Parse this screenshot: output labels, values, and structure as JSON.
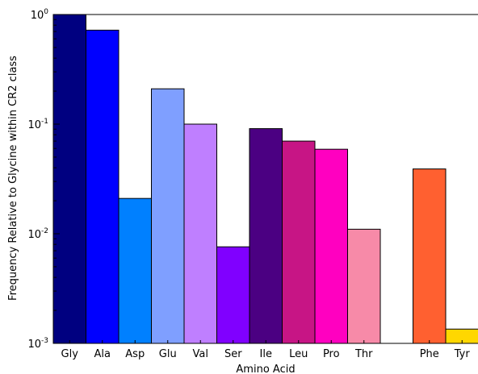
{
  "chart_data": {
    "type": "bar",
    "title": "",
    "xlabel": "Amino Acid",
    "ylabel": "Frequency Relative to Glycine within CR2 class",
    "y_scale": "log",
    "ylim": [
      0.001,
      1
    ],
    "y_ticks": [
      {
        "value": 0.001,
        "base": "10",
        "exp": "-3"
      },
      {
        "value": 0.01,
        "base": "10",
        "exp": "-2"
      },
      {
        "value": 0.1,
        "base": "10",
        "exp": "-1"
      },
      {
        "value": 1,
        "base": "10",
        "exp": "0"
      }
    ],
    "grid": false,
    "legend": "none",
    "bars": [
      {
        "category": "Gly",
        "value": 1.0,
        "color": "#000080"
      },
      {
        "category": "Ala",
        "value": 0.72,
        "color": "#0000ff"
      },
      {
        "category": "Asp",
        "value": 0.021,
        "color": "#0080ff"
      },
      {
        "category": "Glu",
        "value": 0.21,
        "color": "#7f9fff"
      },
      {
        "category": "Val",
        "value": 0.1,
        "color": "#bf7fff"
      },
      {
        "category": "Ser",
        "value": 0.0076,
        "color": "#8000ff"
      },
      {
        "category": "Ile",
        "value": 0.091,
        "color": "#4b0082"
      },
      {
        "category": "Leu",
        "value": 0.07,
        "color": "#c71585"
      },
      {
        "category": "Pro",
        "value": 0.059,
        "color": "#ff00c0"
      },
      {
        "category": "Thr",
        "value": 0.011,
        "color": "#f78aa8"
      },
      {
        "category": "",
        "value": null,
        "color": "#ffffff"
      },
      {
        "category": "Phe",
        "value": 0.039,
        "color": "#ff6030"
      },
      {
        "category": "Tyr",
        "value": 0.00135,
        "color": "#ffd700"
      }
    ]
  }
}
